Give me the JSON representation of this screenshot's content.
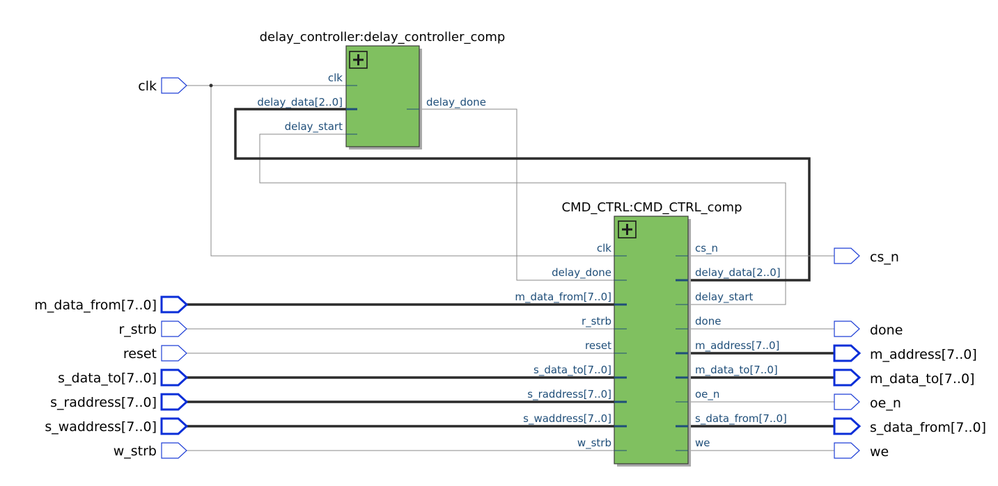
{
  "delay_block": {
    "title": "delay_controller:delay_controller_comp",
    "inputs": [
      "clk",
      "delay_data[2..0]",
      "delay_start"
    ],
    "outputs": [
      "delay_done"
    ]
  },
  "cmd_block": {
    "title": "CMD_CTRL:CMD_CTRL_comp",
    "inputs": [
      "clk",
      "delay_done",
      "m_data_from[7..0]",
      "r_strb",
      "reset",
      "s_data_to[7..0]",
      "s_raddress[7..0]",
      "s_waddress[7..0]",
      "w_strb"
    ],
    "outputs": [
      "cs_n",
      "delay_data[2..0]",
      "delay_start",
      "done",
      "m_address[7..0]",
      "m_data_to[7..0]",
      "oe_n",
      "s_data_from[7..0]",
      "we"
    ]
  },
  "input_ports": [
    "clk",
    "m_data_from[7..0]",
    "r_strb",
    "reset",
    "s_data_to[7..0]",
    "s_raddress[7..0]",
    "s_waddress[7..0]",
    "w_strb"
  ],
  "output_ports": [
    "cs_n",
    "done",
    "m_address[7..0]",
    "m_data_to[7..0]",
    "oe_n",
    "s_data_from[7..0]",
    "we"
  ],
  "colors": {
    "block_fill": "#80c060",
    "pin_label": "#1f4e79",
    "bus_port_border": "#0a2ed8",
    "wire": "#8a8a8a",
    "bus": "#2b2b2b"
  },
  "icons": [
    "expand-plus-icon"
  ]
}
